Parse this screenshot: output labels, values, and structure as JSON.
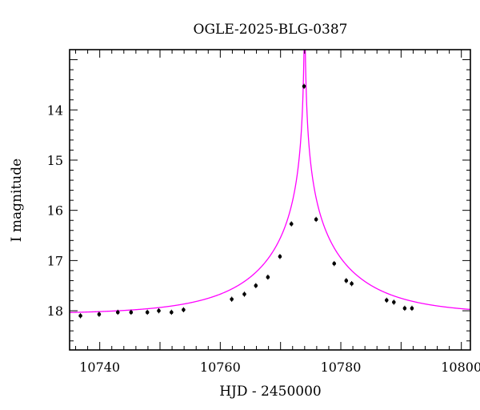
{
  "chart_data": {
    "type": "scatter",
    "title": "OGLE-2025-BLG-0387",
    "xlabel": "HJD - 2450000",
    "ylabel": "I magnitude",
    "xlim": [
      10735,
      10801.5
    ],
    "ylim": [
      18.78,
      12.8
    ],
    "y_inverted": true,
    "x_ticks": [
      10740,
      10760,
      10780,
      10800
    ],
    "y_ticks": [
      14,
      15,
      16,
      17,
      18
    ],
    "grid": false,
    "legend": "none",
    "colors": {
      "data": "#000000",
      "model": "#ff00ff",
      "frame": "#000000"
    },
    "series": [
      {
        "values": [
          {
            "x": 10736.8,
            "y": 18.1
          },
          {
            "x": 10739.9,
            "y": 18.07
          },
          {
            "x": 10743.0,
            "y": 18.03
          },
          {
            "x": 10745.2,
            "y": 18.03
          },
          {
            "x": 10747.9,
            "y": 18.03
          },
          {
            "x": 10749.8,
            "y": 18.0
          },
          {
            "x": 10751.9,
            "y": 18.03
          },
          {
            "x": 10753.9,
            "y": 17.98
          },
          {
            "x": 10761.9,
            "y": 17.77
          },
          {
            "x": 10764.0,
            "y": 17.67
          },
          {
            "x": 10765.9,
            "y": 17.5
          },
          {
            "x": 10767.9,
            "y": 17.33
          },
          {
            "x": 10769.9,
            "y": 16.92
          },
          {
            "x": 10771.8,
            "y": 16.27
          },
          {
            "x": 10773.9,
            "y": 13.53
          },
          {
            "x": 10775.9,
            "y": 16.18
          },
          {
            "x": 10778.9,
            "y": 17.06
          },
          {
            "x": 10780.9,
            "y": 17.4
          },
          {
            "x": 10781.8,
            "y": 17.46
          },
          {
            "x": 10787.6,
            "y": 17.79
          },
          {
            "x": 10788.8,
            "y": 17.83
          },
          {
            "x": 10790.6,
            "y": 17.95
          },
          {
            "x": 10791.8,
            "y": 17.95
          }
        ]
      }
    ],
    "model_curve": {
      "type": "line",
      "baseline_mag": 18.07,
      "t0": 10774.0,
      "tE": 16.0,
      "u0": 0.004
    }
  }
}
